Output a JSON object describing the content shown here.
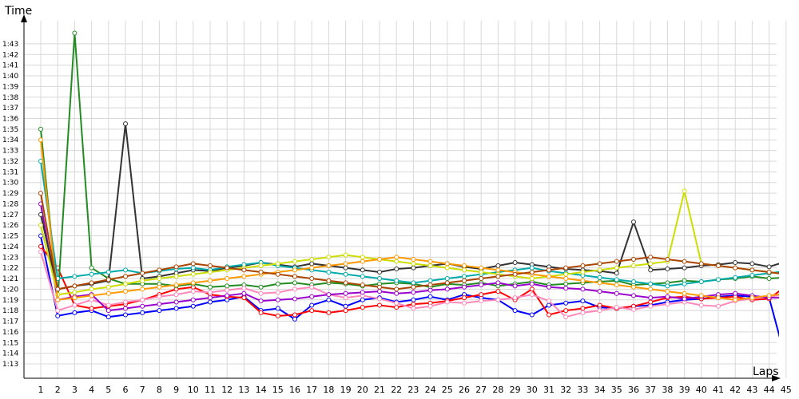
{
  "chart_data": {
    "type": "line",
    "title": "",
    "ylabel": "Time",
    "xlabel": "Laps",
    "grid": true,
    "x_ticks": [
      "1",
      "2",
      "3",
      "4",
      "5",
      "6",
      "7",
      "8",
      "9",
      "10",
      "11",
      "12",
      "13",
      "14",
      "15",
      "16",
      "17",
      "18",
      "19",
      "20",
      "21",
      "22",
      "23",
      "24",
      "25",
      "26",
      "27",
      "28",
      "29",
      "30",
      "31",
      "32",
      "33",
      "34",
      "35",
      "36",
      "37",
      "38",
      "39",
      "40",
      "41",
      "42",
      "43",
      "44",
      "45"
    ],
    "y_ticks": [
      "1:13",
      "1:14",
      "1:15",
      "1:16",
      "1:17",
      "1:18",
      "1:19",
      "1:20",
      "1:21",
      "1:22",
      "1:23",
      "1:24",
      "1:25",
      "1:26",
      "1:27",
      "1:28",
      "1:29",
      "1:30",
      "1:31",
      "1:32",
      "1:33",
      "1:34",
      "1:35",
      "1:36",
      "1:37",
      "1:38",
      "1:39",
      "1:40",
      "1:41",
      "1:42",
      "1:43"
    ],
    "y_range_seconds": [
      72,
      105
    ],
    "series": [
      {
        "color": "#0000ff",
        "values": [
          85,
          77.5,
          77.8,
          78,
          77.4,
          77.6,
          77.8,
          78,
          78.2,
          78.4,
          78.8,
          79,
          79.3,
          78,
          78.2,
          77.2,
          78.5,
          79,
          78.4,
          79,
          79.2,
          78.8,
          79,
          79.3,
          79,
          79.5,
          79.2,
          79,
          78,
          77.6,
          78.5,
          78.7,
          78.9,
          78.3,
          78.2,
          78.4,
          78.5,
          78.8,
          79,
          79.1,
          79.3,
          79.4,
          79.3,
          79.2,
          73.3
        ]
      },
      {
        "color": "#ff0000",
        "values": [
          84,
          82,
          78.5,
          78.2,
          78.4,
          78.6,
          79,
          79.5,
          80,
          80.2,
          79.5,
          79.3,
          79.2,
          77.8,
          77.5,
          77.6,
          78,
          77.8,
          78,
          78.3,
          78.5,
          78.3,
          78.6,
          78.7,
          78.9,
          79.2,
          79.5,
          79.8,
          79,
          80,
          77.6,
          78,
          78.2,
          78.5,
          78.2,
          78.4,
          78.8,
          79.2,
          79.3,
          79.1,
          79.2,
          79.3,
          79,
          79.1,
          80.3
        ]
      },
      {
        "color": "#228b22",
        "values": [
          95,
          79,
          104,
          82,
          81,
          80.5,
          80.5,
          80.5,
          80.3,
          80.5,
          80.2,
          80.3,
          80.4,
          80.2,
          80.5,
          80.6,
          80.4,
          80.6,
          80.5,
          80.3,
          80.5,
          80.6,
          80.5,
          80.2,
          80.5,
          80.4,
          80.6,
          80.3,
          80.5,
          80.7,
          80.4,
          80.5,
          80.6,
          80.7,
          80.8,
          80.4,
          80.5,
          80.6,
          80.8,
          80.7,
          80.9,
          81,
          81.2,
          81,
          81.1
        ]
      },
      {
        "color": "#ff88bb",
        "values": [
          83.5,
          78,
          78.5,
          79,
          78.5,
          78.8,
          79,
          79.3,
          79.5,
          79.8,
          79.7,
          79.9,
          80.1,
          79.6,
          79.7,
          80,
          80.2,
          79.5,
          79.2,
          79.4,
          79.1,
          78.7,
          78.2,
          78.4,
          78.8,
          78.7,
          78.9,
          79,
          79.2,
          79.5,
          78.9,
          77.4,
          77.8,
          78,
          78.3,
          78.1,
          78.4,
          78.6,
          78.8,
          78.5,
          78.4,
          78.9,
          79.1,
          79.3,
          79.5
        ]
      },
      {
        "color": "#9900cc",
        "values": [
          88,
          79,
          79.3,
          79.5,
          78,
          78.2,
          78.4,
          78.6,
          78.8,
          79,
          79.2,
          79.4,
          79.6,
          78.9,
          79,
          79.1,
          79.3,
          79.5,
          79.6,
          79.7,
          79.8,
          79.6,
          79.7,
          79.9,
          80,
          80.2,
          80.4,
          80.6,
          80.3,
          80.5,
          80.2,
          80.1,
          80,
          79.8,
          79.6,
          79.4,
          79.2,
          79.3,
          79.1,
          79.3,
          79.5,
          79.6,
          79.4,
          79.2,
          79.2
        ]
      },
      {
        "color": "#333333",
        "values": [
          87,
          80,
          80.3,
          80.5,
          80.8,
          95.5,
          81,
          81.2,
          81.5,
          81.8,
          81.7,
          82,
          82.2,
          82.5,
          82.3,
          82.1,
          82.4,
          82.2,
          82,
          81.8,
          81.6,
          81.9,
          82,
          82.2,
          82.4,
          82.1,
          81.9,
          82.2,
          82.5,
          82.3,
          82.1,
          81.9,
          81.8,
          81.7,
          81.5,
          86.3,
          81.8,
          81.9,
          82,
          82.2,
          82.3,
          82.5,
          82.4,
          82.1,
          82.6
        ]
      },
      {
        "color": "#00aaaa",
        "values": [
          92,
          81,
          81.2,
          81.4,
          81.6,
          81.8,
          81.5,
          81.7,
          81.9,
          82,
          81.8,
          82.1,
          82.3,
          82.5,
          82.2,
          82,
          81.8,
          81.6,
          81.4,
          81.2,
          81,
          80.8,
          80.6,
          80.8,
          81,
          81.2,
          81.4,
          81.6,
          81.8,
          82,
          81.7,
          81.5,
          81.3,
          81.1,
          80.9,
          80.7,
          80.5,
          80.3,
          80.5,
          80.7,
          80.9,
          81.1,
          81.3,
          81.5,
          81.7
        ]
      },
      {
        "color": "#ccdd00",
        "values": [
          86,
          79.5,
          79.7,
          80,
          80.2,
          80.5,
          80.8,
          81,
          81.2,
          81.4,
          81.6,
          81.8,
          82,
          82.2,
          82.4,
          82.6,
          82.8,
          83,
          83.2,
          83,
          82.8,
          82.6,
          82.4,
          82.2,
          82,
          81.8,
          81.6,
          81.4,
          81.2,
          81,
          81.2,
          81.4,
          81.6,
          81.8,
          82,
          82.2,
          82.4,
          82.6,
          89.2,
          82.4,
          82.2,
          82,
          81.8,
          81.6,
          81.4
        ]
      },
      {
        "color": "#ff9900",
        "values": [
          94,
          79,
          79.2,
          79.4,
          79.6,
          79.8,
          80,
          80.2,
          80.4,
          80.6,
          80.8,
          81,
          81.2,
          81.4,
          81.6,
          81.8,
          82,
          82.2,
          82.4,
          82.6,
          82.8,
          83,
          82.8,
          82.6,
          82.4,
          82.2,
          82,
          81.8,
          81.6,
          81.4,
          81.2,
          81,
          80.8,
          80.6,
          80.4,
          80.2,
          80,
          79.8,
          79.6,
          79.4,
          79.2,
          79,
          79.2,
          79.4,
          79.6
        ]
      },
      {
        "color": "#aa4400",
        "values": [
          89,
          80,
          80.3,
          80.6,
          80.9,
          81.2,
          81.5,
          81.8,
          82.1,
          82.4,
          82.2,
          82,
          81.8,
          81.6,
          81.4,
          81.2,
          81,
          80.8,
          80.6,
          80.4,
          80.2,
          80,
          80.2,
          80.4,
          80.6,
          80.8,
          81,
          81.2,
          81.4,
          81.6,
          81.8,
          82,
          82.2,
          82.4,
          82.6,
          82.8,
          83,
          82.8,
          82.6,
          82.4,
          82.2,
          82,
          81.8,
          81.6,
          81.4
        ]
      }
    ]
  }
}
